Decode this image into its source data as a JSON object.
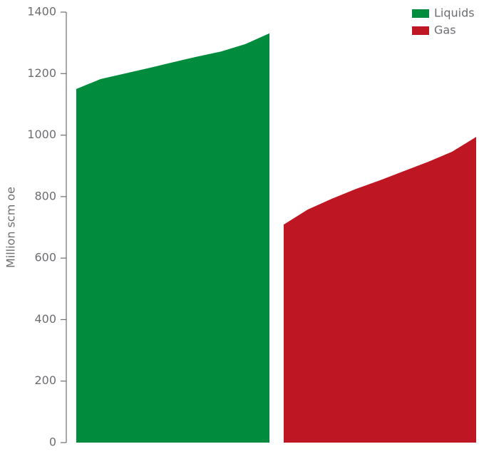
{
  "chart_data": {
    "type": "area",
    "y_label": "Million scm oe",
    "categories": [
      null,
      null,
      null,
      null,
      null,
      null,
      null,
      null,
      null
    ],
    "series": [
      {
        "name": "Liquids",
        "color": "#008c3c",
        "values": [
          1150,
          1182,
          1200,
          1218,
          1237,
          1255,
          1272,
          1296,
          1331
        ]
      },
      {
        "name": "Gas",
        "color": "#be1622",
        "values": [
          709,
          758,
          793,
          825,
          853,
          883,
          913,
          946,
          994
        ]
      }
    ],
    "ylim": [
      0,
      1400
    ],
    "yticks": [
      0,
      200,
      400,
      600,
      800,
      1000,
      1200,
      1400
    ],
    "legend": "top-right"
  }
}
